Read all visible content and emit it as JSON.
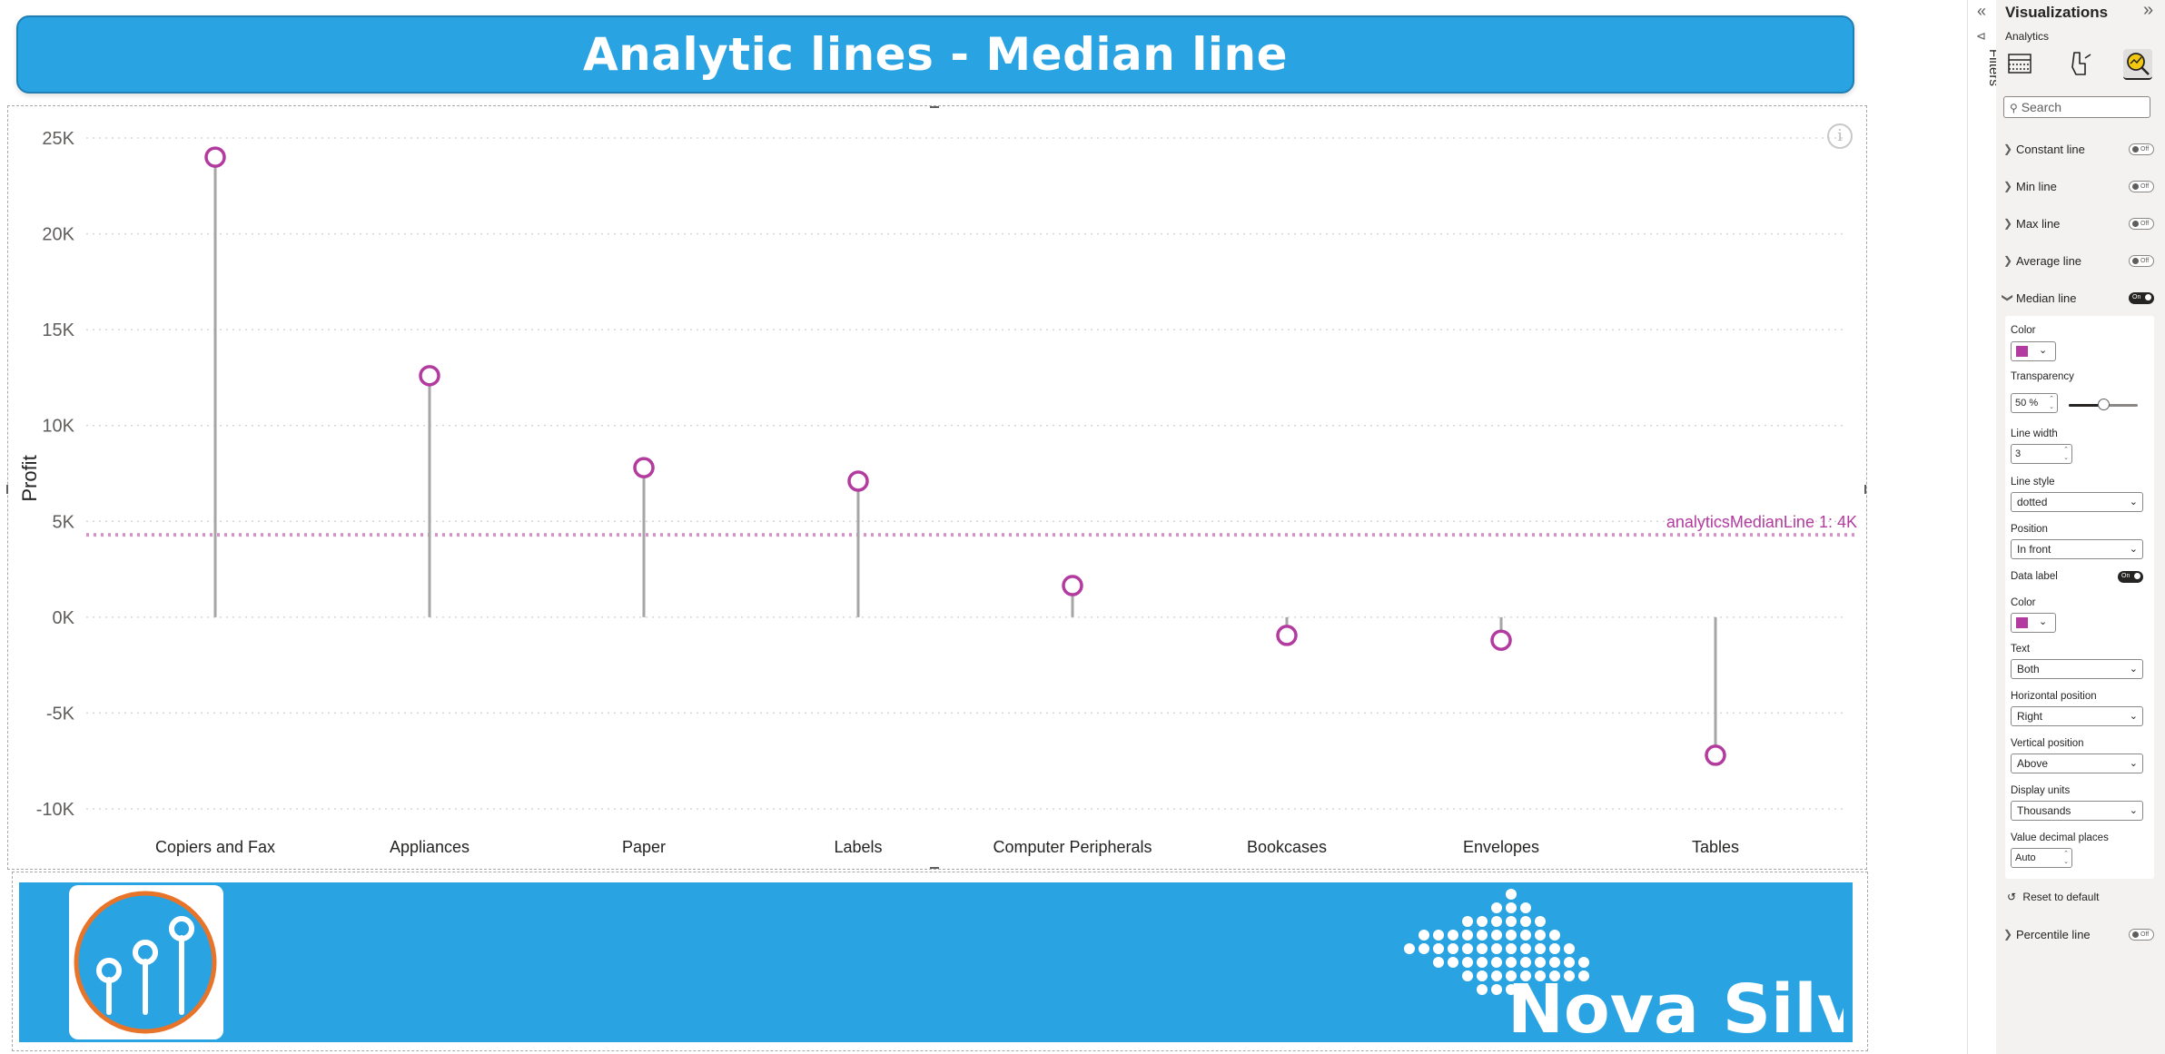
{
  "report": {
    "title": "Analytic lines - Median line",
    "brand_name": "Nova Silva"
  },
  "chart_data": {
    "type": "lollipop",
    "ylabel": "Profit",
    "xlabel": "",
    "ylim": [
      -10000,
      25000
    ],
    "yticks": [
      25000,
      20000,
      15000,
      10000,
      5000,
      0,
      -5000,
      -10000
    ],
    "ytick_labels": [
      "25K",
      "20K",
      "15K",
      "10K",
      "5K",
      "0K",
      "-5K",
      "-10K"
    ],
    "categories": [
      "Copiers and Fax",
      "Appliances",
      "Paper",
      "Labels",
      "Computer Peripherals",
      "Bookcases",
      "Envelopes",
      "Tables"
    ],
    "series": [
      {
        "values": [
          24000,
          12600,
          7800,
          7100,
          1650,
          -950,
          -1200,
          -7200
        ]
      }
    ],
    "median_line": {
      "value": 4300,
      "label": "analyticsMedianLine 1: 4K",
      "style": "dotted",
      "color": "#b33b9f"
    },
    "marker_color": "#b33b9f",
    "stem_color": "#a6a6a6",
    "grid": true
  },
  "filters_pane": {
    "label": "Filters"
  },
  "viz_pane": {
    "header": "Visualizations",
    "subheader": "Analytics",
    "search_placeholder": "Search",
    "sections_top": [
      {
        "label": "Constant line",
        "toggle": "Off"
      },
      {
        "label": "Min line",
        "toggle": "Off"
      },
      {
        "label": "Max line",
        "toggle": "Off"
      },
      {
        "label": "Average line",
        "toggle": "Off"
      }
    ],
    "median_section": {
      "label": "Median line",
      "toggle": "On",
      "color_label": "Color",
      "color_value": "#b33b9f",
      "transparency_label": "Transparency",
      "transparency_value": "50",
      "transparency_unit": "%",
      "transparency_fraction": 0.5,
      "line_width_label": "Line width",
      "line_width_value": "3",
      "line_style_label": "Line style",
      "line_style_value": "dotted",
      "position_label": "Position",
      "position_value": "In front",
      "data_label_label": "Data label",
      "data_label_toggle": "On",
      "label_color_label": "Color",
      "label_color_value": "#b33b9f",
      "text_label": "Text",
      "text_value": "Both",
      "hpos_label": "Horizontal position",
      "hpos_value": "Right",
      "vpos_label": "Vertical position",
      "vpos_value": "Above",
      "units_label": "Display units",
      "units_value": "Thousands",
      "decimals_label": "Value decimal places",
      "decimals_value": "Auto"
    },
    "reset_label": "Reset to default",
    "percentile": {
      "label": "Percentile line",
      "toggle": "Off"
    }
  }
}
